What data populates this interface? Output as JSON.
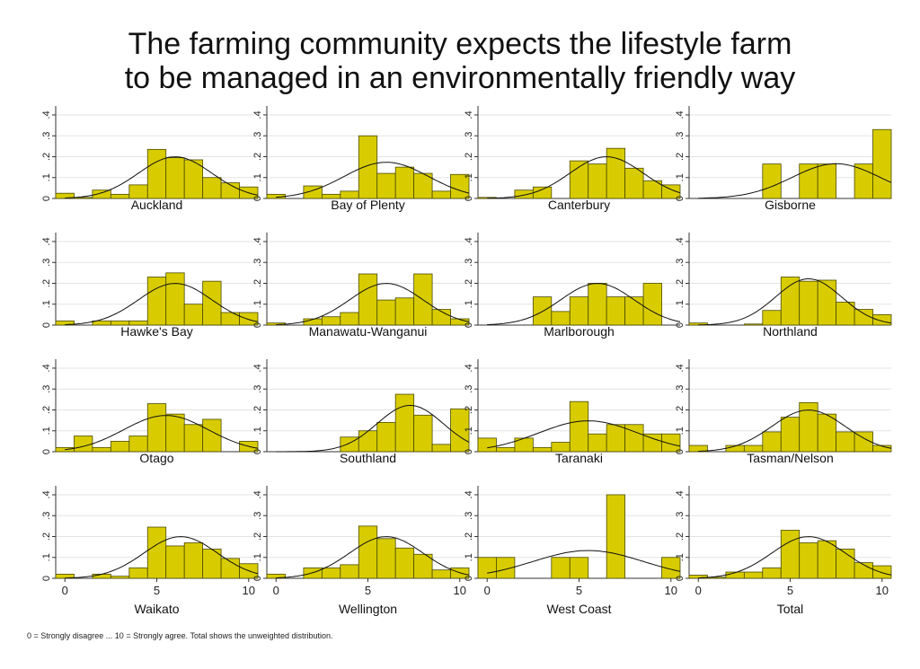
{
  "title_lines": [
    "The farming community expects the lifestyle farm",
    "to be managed in an environmentally friendly way"
  ],
  "footnote": "0 = Strongly disagree ... 10 = Strongly agree. Total shows the unweighted distribution.",
  "colors": {
    "bar_fill": "#d8cc00",
    "bar_stroke": "#4a4a00",
    "grid": "#e3e3e3",
    "axis": "#333333",
    "curve": "#111111"
  },
  "chart_data": {
    "type": "bar",
    "subtype": "histogram with fitted normal curve, small multiples",
    "x_ticks": [
      0,
      5,
      10
    ],
    "y_ticks": [
      0,
      0.1,
      0.2,
      0.3,
      0.4
    ],
    "y_tick_labels": [
      "0",
      ".1",
      ".2",
      ".3",
      ".4"
    ],
    "xlim": [
      -0.5,
      10.5
    ],
    "ylim": [
      0,
      0.43
    ],
    "grid": true,
    "bins": [
      0,
      1,
      2,
      3,
      4,
      5,
      6,
      7,
      8,
      9,
      10
    ],
    "panels": [
      {
        "name": "Auckland",
        "values": [
          0.025,
          0.005,
          0.04,
          0.02,
          0.065,
          0.235,
          0.195,
          0.185,
          0.1,
          0.075,
          0.055
        ],
        "mean": 6.0,
        "sd": 2.0
      },
      {
        "name": "Bay of Plenty",
        "values": [
          0.02,
          0,
          0.06,
          0.02,
          0.035,
          0.3,
          0.12,
          0.15,
          0.12,
          0.035,
          0.115
        ],
        "mean": 6.0,
        "sd": 2.3
      },
      {
        "name": "Canterbury",
        "values": [
          0.005,
          0,
          0.04,
          0.055,
          0,
          0.18,
          0.165,
          0.24,
          0.145,
          0.085,
          0.065
        ],
        "mean": 6.5,
        "sd": 2.0
      },
      {
        "name": "Gisborne",
        "values": [
          0,
          0,
          0,
          0,
          0.165,
          0,
          0.165,
          0.165,
          0,
          0.165,
          0.33
        ],
        "mean": 7.5,
        "sd": 2.4
      },
      {
        "name": "Hawke's Bay",
        "values": [
          0.02,
          0,
          0.02,
          0.02,
          0.02,
          0.23,
          0.25,
          0.1,
          0.21,
          0.06,
          0.06
        ],
        "mean": 6.0,
        "sd": 2.0
      },
      {
        "name": "Manawatu-Wanganui",
        "values": [
          0.01,
          0,
          0.03,
          0.04,
          0.06,
          0.245,
          0.12,
          0.13,
          0.245,
          0.075,
          0.03
        ],
        "mean": 6.0,
        "sd": 2.0
      },
      {
        "name": "Marlborough",
        "values": [
          0,
          0,
          0,
          0.135,
          0.065,
          0.135,
          0.2,
          0.135,
          0.135,
          0.2,
          0
        ],
        "mean": 6.0,
        "sd": 2.0
      },
      {
        "name": "Northland",
        "values": [
          0.01,
          0,
          0,
          0.005,
          0.07,
          0.23,
          0.21,
          0.215,
          0.11,
          0.075,
          0.05
        ],
        "mean": 6.0,
        "sd": 1.8
      },
      {
        "name": "Otago",
        "values": [
          0.02,
          0.075,
          0.02,
          0.05,
          0.075,
          0.23,
          0.18,
          0.13,
          0.155,
          0,
          0.05
        ],
        "mean": 5.5,
        "sd": 2.3
      },
      {
        "name": "Southland",
        "values": [
          0,
          0,
          0,
          0,
          0.07,
          0.1,
          0.14,
          0.275,
          0.175,
          0.035,
          0.205
        ],
        "mean": 7.3,
        "sd": 1.8
      },
      {
        "name": "Taranaki",
        "values": [
          0.065,
          0.02,
          0.065,
          0.02,
          0.045,
          0.24,
          0.085,
          0.13,
          0.13,
          0.085,
          0.085
        ],
        "mean": 5.5,
        "sd": 2.7
      },
      {
        "name": "Tasman/Nelson",
        "values": [
          0.03,
          0,
          0.03,
          0.03,
          0.095,
          0.165,
          0.235,
          0.18,
          0.095,
          0.095,
          0.03
        ],
        "mean": 6.0,
        "sd": 2.0
      },
      {
        "name": "Waikato",
        "values": [
          0.02,
          0,
          0.02,
          0.01,
          0.05,
          0.245,
          0.155,
          0.17,
          0.14,
          0.095,
          0.07
        ],
        "mean": 6.3,
        "sd": 2.0
      },
      {
        "name": "Wellington",
        "values": [
          0.02,
          0,
          0.05,
          0.05,
          0.065,
          0.25,
          0.19,
          0.145,
          0.115,
          0.04,
          0.05
        ],
        "mean": 6.0,
        "sd": 2.0
      },
      {
        "name": "West Coast",
        "values": [
          0.1,
          0.1,
          0,
          0,
          0.1,
          0.1,
          0,
          0.4,
          0,
          0,
          0.1
        ],
        "mean": 5.5,
        "sd": 3.0
      },
      {
        "name": "Total",
        "values": [
          0.015,
          0.005,
          0.03,
          0.03,
          0.05,
          0.23,
          0.17,
          0.18,
          0.14,
          0.075,
          0.06
        ],
        "mean": 6.0,
        "sd": 2.0
      }
    ]
  }
}
